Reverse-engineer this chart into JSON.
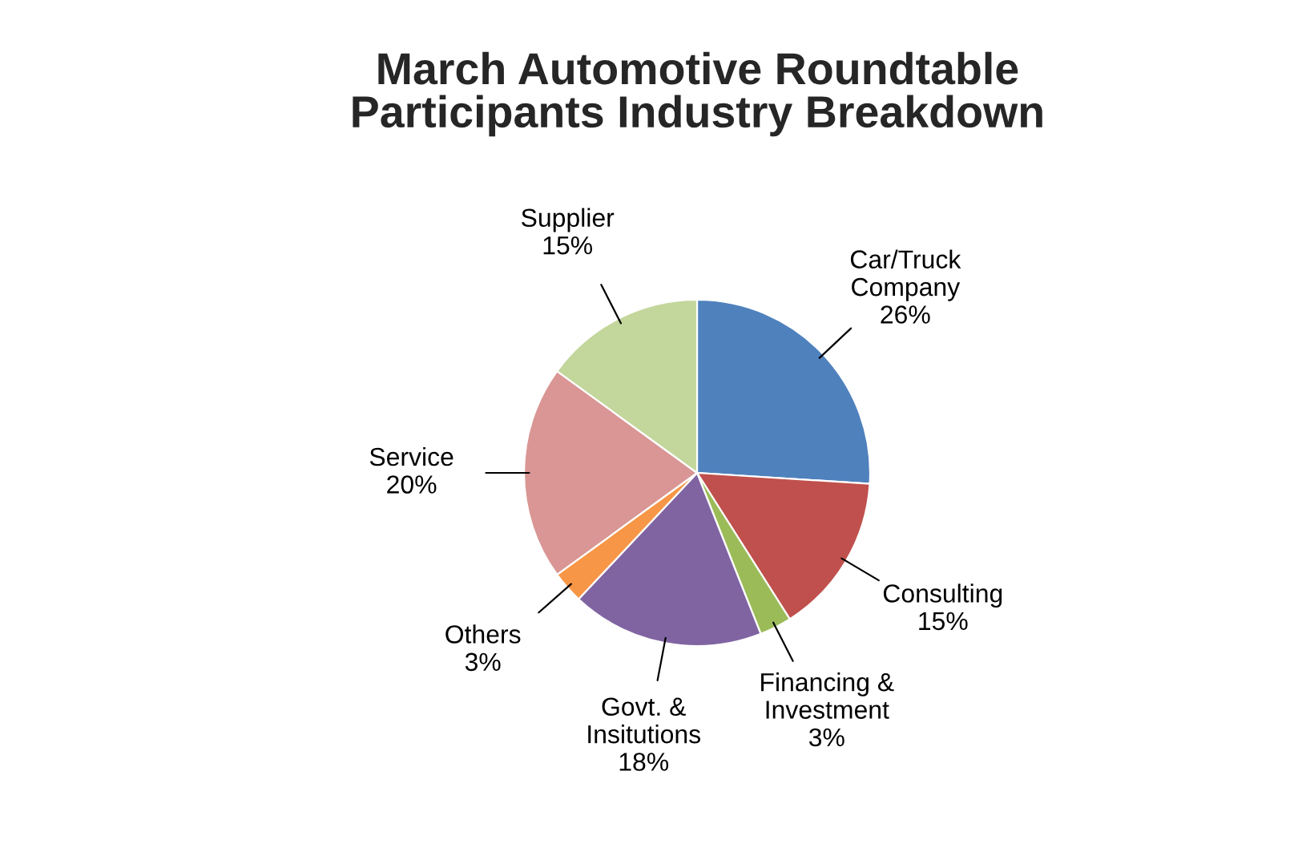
{
  "chart_data": {
    "type": "pie",
    "title": "March Automotive Roundtable\nParticipants Industry Breakdown",
    "categories": [
      "Car/Truck\nCompany",
      "Consulting",
      "Financing &\nInvestment",
      "Govt. &\nInsitutions",
      "Others",
      "Service",
      "Supplier"
    ],
    "values": [
      26,
      15,
      3,
      18,
      3,
      20,
      15
    ],
    "value_labels": [
      "26%",
      "15%",
      "3%",
      "18%",
      "3%",
      "20%",
      "15%"
    ],
    "colors": [
      "#4f81bd",
      "#c0504d",
      "#9bbb59",
      "#8064a2",
      "#f79646",
      "#d99694",
      "#c3d69b"
    ]
  }
}
